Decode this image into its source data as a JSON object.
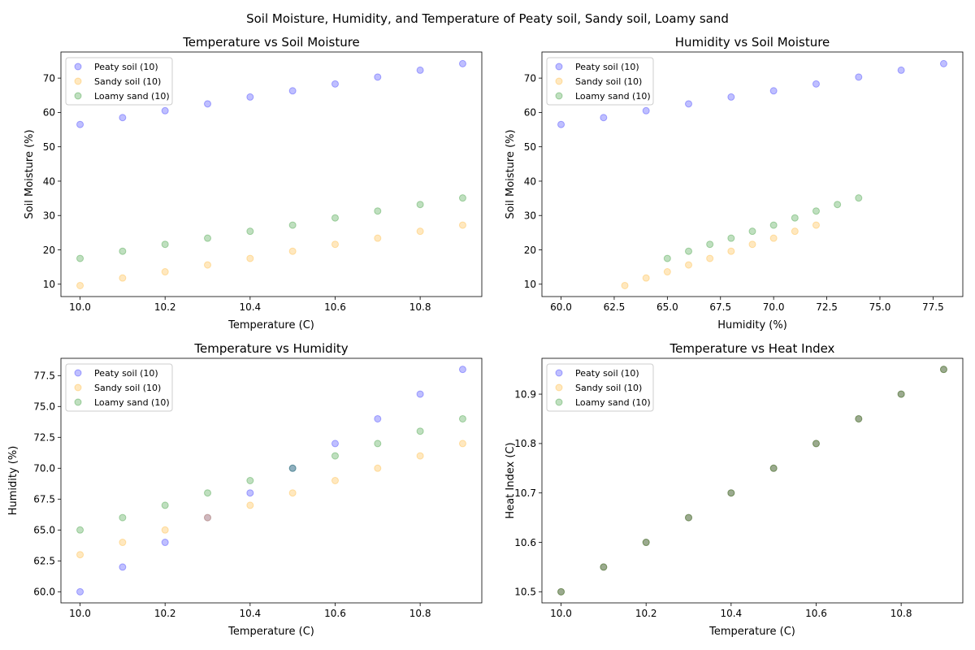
{
  "figure": {
    "suptitle": "Soil Moisture, Humidity, and Temperature of Peaty soil, Sandy soil, Loamy sand"
  },
  "chart_data": [
    {
      "type": "scatter",
      "title": "Temperature vs Soil Moisture",
      "xlabel": "Temperature (C)",
      "ylabel": "Soil Moisture (%)",
      "xlim": [
        9.955,
        10.945
      ],
      "ylim": [
        6.4,
        77.6
      ],
      "xticks": [
        10.0,
        10.2,
        10.4,
        10.6,
        10.8
      ],
      "xtick_labels": [
        "10.0",
        "10.2",
        "10.4",
        "10.6",
        "10.8"
      ],
      "yticks": [
        10,
        20,
        30,
        40,
        50,
        60,
        70
      ],
      "ytick_labels": [
        "10",
        "20",
        "30",
        "40",
        "50",
        "60",
        "70"
      ],
      "legend_position": "upper-left",
      "series": [
        {
          "name": "Peaty soil (10)",
          "color": "#0000ff",
          "points": [
            [
              10.0,
              56.5
            ],
            [
              10.1,
              58.5
            ],
            [
              10.2,
              60.5
            ],
            [
              10.3,
              62.5
            ],
            [
              10.4,
              64.5
            ],
            [
              10.5,
              66.3
            ],
            [
              10.6,
              68.3
            ],
            [
              10.7,
              70.3
            ],
            [
              10.8,
              72.3
            ],
            [
              10.9,
              74.2
            ]
          ]
        },
        {
          "name": "Sandy soil (10)",
          "color": "#ffa500",
          "points": [
            [
              10.0,
              9.6
            ],
            [
              10.1,
              11.8
            ],
            [
              10.2,
              13.6
            ],
            [
              10.3,
              15.6
            ],
            [
              10.4,
              17.5
            ],
            [
              10.5,
              19.6
            ],
            [
              10.6,
              21.6
            ],
            [
              10.7,
              23.4
            ],
            [
              10.8,
              25.4
            ],
            [
              10.9,
              27.2
            ]
          ]
        },
        {
          "name": "Loamy sand (10)",
          "color": "#008000",
          "points": [
            [
              10.0,
              17.5
            ],
            [
              10.1,
              19.6
            ],
            [
              10.2,
              21.6
            ],
            [
              10.3,
              23.4
            ],
            [
              10.4,
              25.4
            ],
            [
              10.5,
              27.2
            ],
            [
              10.6,
              29.3
            ],
            [
              10.7,
              31.3
            ],
            [
              10.8,
              33.2
            ],
            [
              10.9,
              35.1
            ]
          ]
        }
      ]
    },
    {
      "type": "scatter",
      "title": "Humidity vs Soil Moisture",
      "xlabel": "Humidity (%)",
      "ylabel": "Soil Moisture (%)",
      "xlim": [
        59.1,
        78.9
      ],
      "ylim": [
        6.4,
        77.6
      ],
      "xticks": [
        60,
        62.5,
        65,
        67.5,
        70,
        72.5,
        75,
        77.5
      ],
      "xtick_labels": [
        "60.0",
        "62.5",
        "65.0",
        "67.5",
        "70.0",
        "72.5",
        "75.0",
        "77.5"
      ],
      "yticks": [
        10,
        20,
        30,
        40,
        50,
        60,
        70
      ],
      "ytick_labels": [
        "10",
        "20",
        "30",
        "40",
        "50",
        "60",
        "70"
      ],
      "legend_position": "upper-left",
      "series": [
        {
          "name": "Peaty soil (10)",
          "color": "#0000ff",
          "points": [
            [
              60,
              56.5
            ],
            [
              62,
              58.5
            ],
            [
              64,
              60.5
            ],
            [
              66,
              62.5
            ],
            [
              68,
              64.5
            ],
            [
              70,
              66.3
            ],
            [
              72,
              68.3
            ],
            [
              74,
              70.3
            ],
            [
              76,
              72.3
            ],
            [
              78,
              74.2
            ]
          ]
        },
        {
          "name": "Sandy soil (10)",
          "color": "#ffa500",
          "points": [
            [
              63,
              9.6
            ],
            [
              64,
              11.8
            ],
            [
              65,
              13.6
            ],
            [
              66,
              15.6
            ],
            [
              67,
              17.5
            ],
            [
              68,
              19.6
            ],
            [
              69,
              21.6
            ],
            [
              70,
              23.4
            ],
            [
              71,
              25.4
            ],
            [
              72,
              27.2
            ]
          ]
        },
        {
          "name": "Loamy sand (10)",
          "color": "#008000",
          "points": [
            [
              65,
              17.5
            ],
            [
              66,
              19.6
            ],
            [
              67,
              21.6
            ],
            [
              68,
              23.4
            ],
            [
              69,
              25.4
            ],
            [
              70,
              27.2
            ],
            [
              71,
              29.3
            ],
            [
              72,
              31.3
            ],
            [
              73,
              33.2
            ],
            [
              74,
              35.1
            ]
          ]
        }
      ]
    },
    {
      "type": "scatter",
      "title": "Temperature vs Humidity",
      "xlabel": "Temperature (C)",
      "ylabel": "Humidity (%)",
      "xlim": [
        9.955,
        10.945
      ],
      "ylim": [
        59.1,
        78.9
      ],
      "xticks": [
        10.0,
        10.2,
        10.4,
        10.6,
        10.8
      ],
      "xtick_labels": [
        "10.0",
        "10.2",
        "10.4",
        "10.6",
        "10.8"
      ],
      "yticks": [
        60,
        62.5,
        65,
        67.5,
        70,
        72.5,
        75,
        77.5
      ],
      "ytick_labels": [
        "60.0",
        "62.5",
        "65.0",
        "67.5",
        "70.0",
        "72.5",
        "75.0",
        "77.5"
      ],
      "legend_position": "upper-left",
      "series": [
        {
          "name": "Peaty soil (10)",
          "color": "#0000ff",
          "points": [
            [
              10.0,
              60
            ],
            [
              10.1,
              62
            ],
            [
              10.2,
              64
            ],
            [
              10.3,
              66
            ],
            [
              10.4,
              68
            ],
            [
              10.5,
              70
            ],
            [
              10.6,
              72
            ],
            [
              10.7,
              74
            ],
            [
              10.8,
              76
            ],
            [
              10.9,
              78
            ]
          ]
        },
        {
          "name": "Sandy soil (10)",
          "color": "#ffa500",
          "points": [
            [
              10.0,
              63
            ],
            [
              10.1,
              64
            ],
            [
              10.2,
              65
            ],
            [
              10.3,
              66
            ],
            [
              10.4,
              67
            ],
            [
              10.5,
              68
            ],
            [
              10.6,
              69
            ],
            [
              10.7,
              70
            ],
            [
              10.8,
              71
            ],
            [
              10.9,
              72
            ]
          ]
        },
        {
          "name": "Loamy sand (10)",
          "color": "#008000",
          "points": [
            [
              10.0,
              65
            ],
            [
              10.1,
              66
            ],
            [
              10.2,
              67
            ],
            [
              10.3,
              68
            ],
            [
              10.4,
              69
            ],
            [
              10.5,
              70
            ],
            [
              10.6,
              71
            ],
            [
              10.7,
              72
            ],
            [
              10.8,
              73
            ],
            [
              10.9,
              74
            ]
          ]
        }
      ]
    },
    {
      "type": "scatter",
      "title": "Temperature vs Heat Index",
      "xlabel": "Temperature (C)",
      "ylabel": "Heat Index (C)",
      "xlim": [
        9.955,
        10.945
      ],
      "ylim": [
        10.4775,
        10.9725
      ],
      "xticks": [
        10.0,
        10.2,
        10.4,
        10.6,
        10.8
      ],
      "xtick_labels": [
        "10.0",
        "10.2",
        "10.4",
        "10.6",
        "10.8"
      ],
      "yticks": [
        10.5,
        10.6,
        10.7,
        10.8,
        10.9
      ],
      "ytick_labels": [
        "10.5",
        "10.6",
        "10.7",
        "10.8",
        "10.9"
      ],
      "legend_position": "upper-left",
      "series": [
        {
          "name": "Peaty soil (10)",
          "color": "#0000ff",
          "points": [
            [
              10.0,
              10.5
            ],
            [
              10.1,
              10.55
            ],
            [
              10.2,
              10.6
            ],
            [
              10.3,
              10.65
            ],
            [
              10.4,
              10.7
            ],
            [
              10.5,
              10.75
            ],
            [
              10.6,
              10.8
            ],
            [
              10.7,
              10.85
            ],
            [
              10.8,
              10.9
            ],
            [
              10.9,
              10.95
            ]
          ]
        },
        {
          "name": "Sandy soil (10)",
          "color": "#ffa500",
          "points": [
            [
              10.0,
              10.5
            ],
            [
              10.1,
              10.55
            ],
            [
              10.2,
              10.6
            ],
            [
              10.3,
              10.65
            ],
            [
              10.4,
              10.7
            ],
            [
              10.5,
              10.75
            ],
            [
              10.6,
              10.8
            ],
            [
              10.7,
              10.85
            ],
            [
              10.8,
              10.9
            ],
            [
              10.9,
              10.95
            ]
          ]
        },
        {
          "name": "Loamy sand (10)",
          "color": "#008000",
          "points": [
            [
              10.0,
              10.5
            ],
            [
              10.1,
              10.55
            ],
            [
              10.2,
              10.6
            ],
            [
              10.3,
              10.65
            ],
            [
              10.4,
              10.7
            ],
            [
              10.5,
              10.75
            ],
            [
              10.6,
              10.8
            ],
            [
              10.7,
              10.85
            ],
            [
              10.8,
              10.9
            ],
            [
              10.9,
              10.95
            ]
          ]
        }
      ]
    }
  ]
}
